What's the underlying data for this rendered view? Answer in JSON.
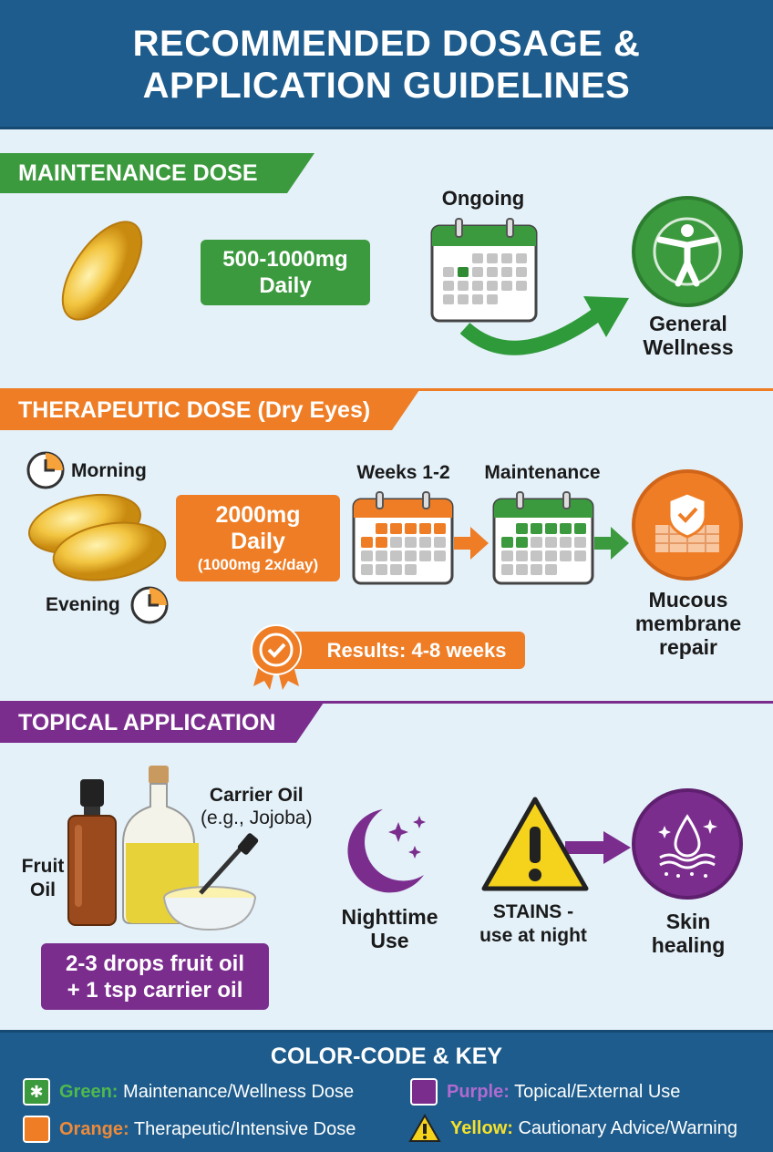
{
  "title": {
    "line1": "RECOMMENDED DOSAGE &",
    "line2": "APPLICATION GUIDELINES"
  },
  "colors": {
    "green": "#3c9a3e",
    "orange": "#ee7d25",
    "purple": "#7b2d8e",
    "yellow": "#f5d21c",
    "header": "#1d5c8c"
  },
  "maintenance": {
    "heading": "MAINTENANCE DOSE",
    "dose_line1": "500-1000mg",
    "dose_line2": "Daily",
    "calendar_label": "Ongoing",
    "outcome_line1": "General",
    "outcome_line2": "Wellness",
    "icons": [
      "capsule-icon",
      "calendar-icon",
      "curved-arrow-icon",
      "wellness-figure-icon"
    ]
  },
  "therapeutic": {
    "heading": "THERAPEUTIC DOSE (Dry Eyes)",
    "morning": "Morning",
    "evening": "Evening",
    "dose_line1": "2000mg",
    "dose_line2": "Daily",
    "dose_line3": "(1000mg 2x/day)",
    "phase1": "Weeks 1-2",
    "phase2": "Maintenance",
    "outcome_line1": "Mucous",
    "outcome_line2": "membrane",
    "outcome_line3": "repair",
    "results": "Results: 4-8 weeks",
    "icons": [
      "clock-icon",
      "capsules-icon",
      "calendar-icon",
      "shield-skin-icon",
      "award-ribbon-icon"
    ]
  },
  "topical": {
    "heading": "TOPICAL APPLICATION",
    "carrier_line1": "Carrier Oil",
    "carrier_line2": "(e.g., Jojoba)",
    "fruit_line1": "Fruit",
    "fruit_line2": "Oil",
    "mix_line1": "2-3 drops fruit oil",
    "mix_line2": "+ 1 tsp carrier oil",
    "night_line1": "Nighttime",
    "night_line2": "Use",
    "warn_line1": "STAINS -",
    "warn_line2": "use at night",
    "outcome_line1": "Skin",
    "outcome_line2": "healing",
    "icons": [
      "dropper-bottle-icon",
      "oil-bottle-icon",
      "bowl-icon",
      "moon-stars-icon",
      "warning-icon",
      "skin-drop-icon"
    ]
  },
  "key": {
    "title": "COLOR-CODE & KEY",
    "items": [
      {
        "color_name": "Green:",
        "desc": "Maintenance/Wellness Dose"
      },
      {
        "color_name": "Purple:",
        "desc": "Topical/External Use"
      },
      {
        "color_name": "Orange:",
        "desc": "Therapeutic/Intensive Dose"
      },
      {
        "color_name": "Yellow:",
        "desc": "Cautionary Advice/Warning"
      }
    ]
  }
}
